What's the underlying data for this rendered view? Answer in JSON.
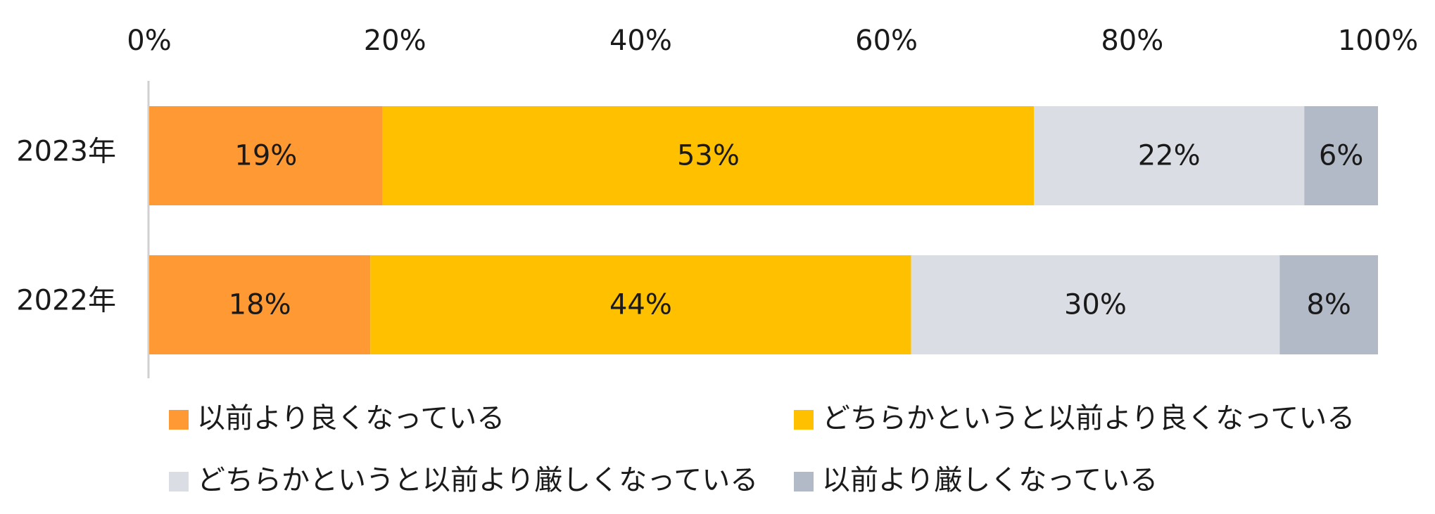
{
  "chart_data": {
    "type": "bar",
    "orientation": "horizontal",
    "stacked": "percent",
    "title": "",
    "xlabel": "",
    "ylabel": "",
    "xlim": [
      0,
      100
    ],
    "x_ticks": [
      "0%",
      "20%",
      "40%",
      "60%",
      "80%",
      "100%"
    ],
    "categories": [
      "2023年",
      "2022年"
    ],
    "series": [
      {
        "name": "以前より良くなっている",
        "values": [
          19,
          18
        ],
        "labels": [
          "19%",
          "18%"
        ],
        "color": "#FF9933"
      },
      {
        "name": "どちらかというと以前より良くなっている",
        "values": [
          53,
          44
        ],
        "labels": [
          "53%",
          "44%"
        ],
        "color": "#FFC000"
      },
      {
        "name": "どちらかというと以前より厳しくなっている",
        "values": [
          22,
          30
        ],
        "labels": [
          "22%",
          "30%"
        ],
        "color": "#DADDE3"
      },
      {
        "name": "以前より厳しくなっている",
        "values": [
          6,
          8
        ],
        "labels": [
          "6%",
          "8%"
        ],
        "color": "#B2B9C7"
      }
    ],
    "legend_position": "bottom",
    "grid": false
  }
}
